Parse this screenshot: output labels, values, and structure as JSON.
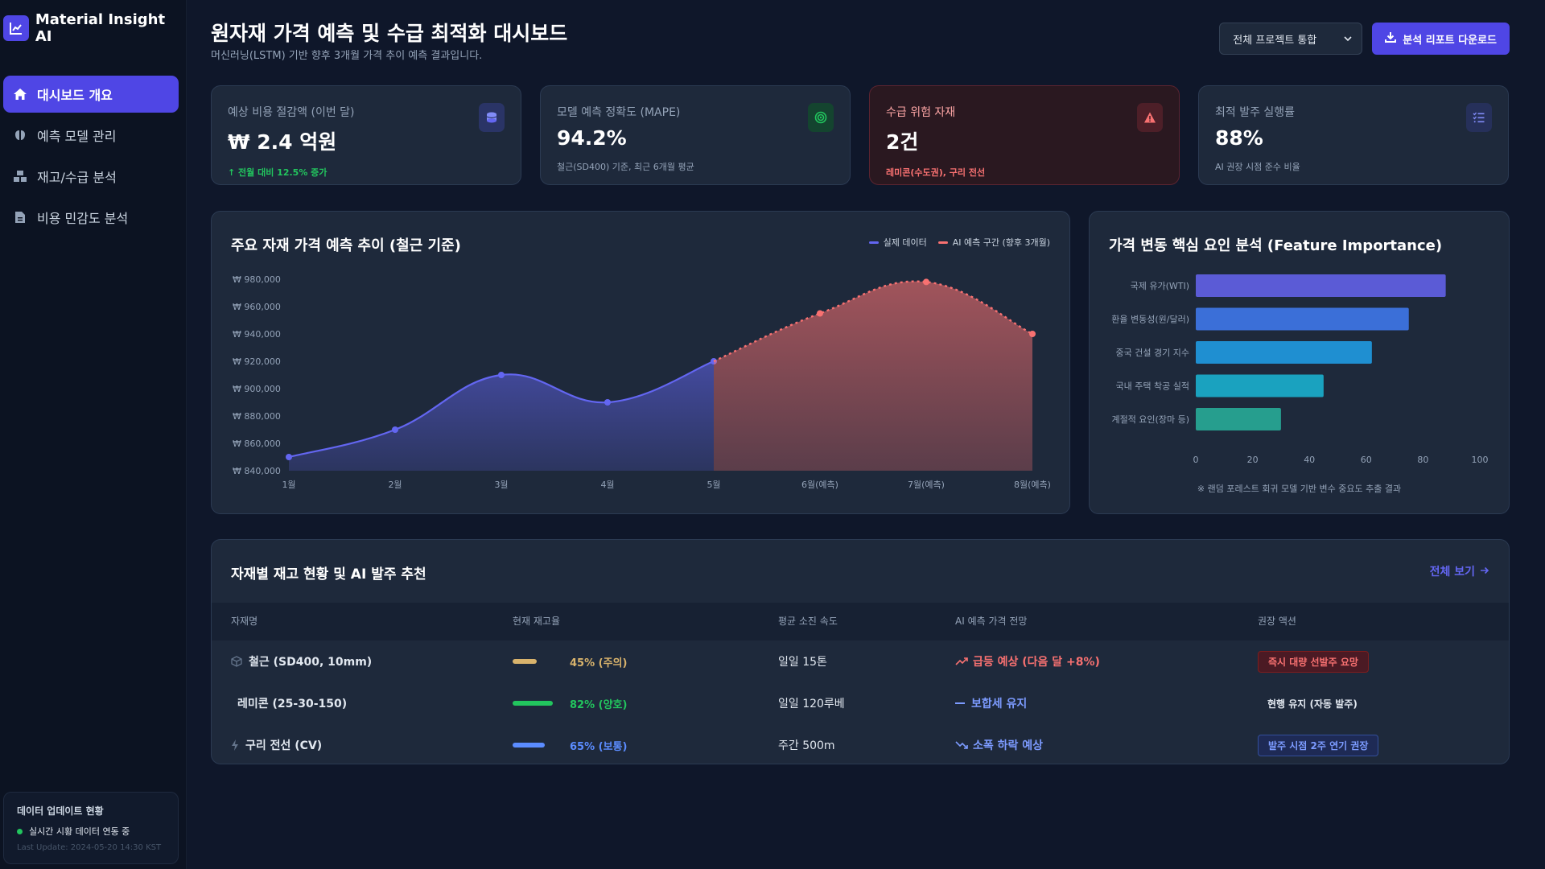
{
  "app": {
    "name": "Material Insight AI"
  },
  "sidebar": {
    "items": [
      {
        "label": "대시보드 개요",
        "icon": "home-icon",
        "active": true
      },
      {
        "label": "예측 모델 관리",
        "icon": "brain-icon",
        "active": false
      },
      {
        "label": "재고/수급 분석",
        "icon": "boxes-icon",
        "active": false
      },
      {
        "label": "비용 민감도 분석",
        "icon": "file-invoice-icon",
        "active": false
      }
    ],
    "status": {
      "title": "데이터 업데이트 현황",
      "live": "실시간 시황 데이터 연동 중",
      "last_update": "Last Update: 2024-05-20 14:30 KST"
    }
  },
  "header": {
    "title": "원자재 가격 예측 및 수급 최적화 대시보드",
    "subtitle": "머신러닝(LSTM) 기반 향후 3개월 가격 추이 예측 결과입니다.",
    "project_select": "전체 프로젝트 통합",
    "download_label": "분석 리포트 다운로드"
  },
  "kpis": [
    {
      "label": "예상 비용 절감액 (이번 달)",
      "value": "₩ 2.4 억원",
      "note": "↑ 전월 대비 12.5% 증가",
      "tone": "green",
      "icon": "coins-icon"
    },
    {
      "label": "모델 예측 정확도 (MAPE)",
      "value": "94.2%",
      "note": "철근(SD400) 기준, 최근 6개월 평균",
      "tone": "normal",
      "icon": "target-icon"
    },
    {
      "label": "수급 위험 자재",
      "value": "2건",
      "note": "레미콘(수도권), 구리 전선",
      "tone": "red",
      "icon": "warning-icon"
    },
    {
      "label": "최적 발주 실행률",
      "value": "88%",
      "note": "AI 권장 시점 준수 비율",
      "tone": "normal",
      "icon": "list-check-icon"
    }
  ],
  "price_chart": {
    "title": "주요 자재 가격 예측 추이 (철근 기준)",
    "legend_actual": "실제 데이터",
    "legend_forecast": "AI 예측 구간 (향후 3개월)"
  },
  "factor_chart": {
    "title": "가격 변동 핵심 요인 분석 (Feature Importance)",
    "footnote": "※ 랜덤 포레스트 회귀 모델 기반 변수 중요도 추출 결과"
  },
  "chart_data": [
    {
      "type": "line",
      "title": "주요 자재 가격 예측 추이 (철근 기준)",
      "categories": [
        "1월",
        "2월",
        "3월",
        "4월",
        "5월",
        "6월(예측)",
        "7월(예측)",
        "8월(예측)"
      ],
      "ylim": [
        840000,
        980000
      ],
      "yticks": [
        "₩ 840,000",
        "₩ 860,000",
        "₩ 880,000",
        "₩ 900,000",
        "₩ 920,000",
        "₩ 940,000",
        "₩ 960,000",
        "₩ 980,000"
      ],
      "series": [
        {
          "name": "실제 데이터",
          "values": [
            850000,
            870000,
            910000,
            890000,
            920000,
            null,
            null,
            null
          ],
          "color": "#6366f1"
        },
        {
          "name": "AI 예측 구간 (향후 3개월)",
          "values": [
            null,
            null,
            null,
            null,
            920000,
            955000,
            978000,
            940000
          ],
          "color": "#f87171"
        }
      ],
      "grid": false,
      "legend": "top-right"
    },
    {
      "type": "bar",
      "orientation": "horizontal",
      "title": "가격 변동 핵심 요인 분석 (Feature Importance)",
      "categories": [
        "국제 유가(WTI)",
        "환율 변동성(원/달러)",
        "중국 건설 경기 지수",
        "국내 주택 착공 실적",
        "계절적 요인(장마 등)"
      ],
      "values": [
        88,
        75,
        62,
        45,
        30
      ],
      "colors": [
        "#5b5bd6",
        "#3b6fd8",
        "#1f8fd1",
        "#1aa2bf",
        "#269e8e"
      ],
      "xlim": [
        0,
        100
      ],
      "xticks": [
        "0",
        "20",
        "40",
        "60",
        "80",
        "100"
      ]
    }
  ],
  "inventory": {
    "title": "자재별 재고 현황 및 AI 발주 추천",
    "view_all": "전체 보기",
    "columns": [
      "자재명",
      "현재 재고율",
      "평균 소진 속도",
      "AI 예측 가격 전망",
      "권장 액션"
    ],
    "rows": [
      {
        "name": "철근 (SD400, 10mm)",
        "icon": "cube-icon",
        "stock_pct": 45,
        "stock_label": "45% (주의)",
        "stock_color": "#d9b36c",
        "speed": "일일 15톤",
        "outlook": "급등 예상 (다음 달 +8%)",
        "outlook_icon": "trend-up-icon",
        "outlook_color": "#f87171",
        "action": "즉시 대량 선발주 요망",
        "action_style": "red"
      },
      {
        "name": "레미콘 (25-30-150)",
        "icon": "",
        "stock_pct": 82,
        "stock_label": "82% (양호)",
        "stock_color": "#22c55e",
        "speed": "일일 120루베",
        "outlook": "보합세 유지",
        "outlook_icon": "dash-icon",
        "outlook_color": "#7c9bff",
        "action": "현행 유지 (자동 발주)",
        "action_style": "plain"
      },
      {
        "name": "구리 전선 (CV)",
        "icon": "bolt-icon",
        "stock_pct": 65,
        "stock_label": "65% (보통)",
        "stock_color": "#5b8cff",
        "speed": "주간 500m",
        "outlook": "소폭 하락 예상",
        "outlook_icon": "trend-down-icon",
        "outlook_color": "#7c9bff",
        "action": "발주 시점 2주 연기 권장",
        "action_style": "blue"
      }
    ]
  },
  "colors": {
    "accent": "#4f46e5",
    "background": "#0f172a",
    "panel": "#1e293b",
    "danger": "#f87171",
    "success": "#22c55e"
  }
}
